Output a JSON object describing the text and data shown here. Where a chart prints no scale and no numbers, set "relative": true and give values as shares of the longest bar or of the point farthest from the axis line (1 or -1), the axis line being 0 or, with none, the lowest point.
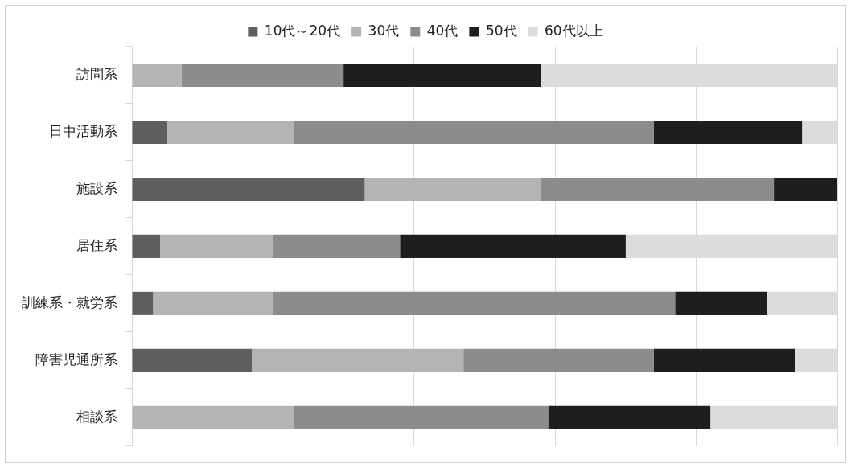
{
  "chart_data": {
    "type": "bar",
    "orientation": "horizontal",
    "stacked": true,
    "relative": true,
    "grid": "x",
    "legend": "top",
    "categories": [
      "訪問系",
      "日中活動系",
      "施設系",
      "居住系",
      "訓練系・就労系",
      "障害児通所系",
      "相談系"
    ],
    "series": [
      {
        "name": "10代～20代",
        "color": "#5f5f5f",
        "values": [
          0,
          0.05,
          0.33,
          0.04,
          0.03,
          0.17,
          0
        ]
      },
      {
        "name": "30代",
        "color": "#b4b4b4",
        "values": [
          0.07,
          0.18,
          0.25,
          0.16,
          0.17,
          0.3,
          0.23
        ]
      },
      {
        "name": "40代",
        "color": "#8c8c8c",
        "values": [
          0.23,
          0.51,
          0.33,
          0.18,
          0.57,
          0.27,
          0.36
        ]
      },
      {
        "name": "50代",
        "color": "#1e1e1e",
        "values": [
          0.28,
          0.21,
          0.09,
          0.32,
          0.13,
          0.2,
          0.23
        ]
      },
      {
        "name": "60代以上",
        "color": "#dcdcdc",
        "values": [
          0.42,
          0.05,
          0,
          0.3,
          0.1,
          0.06,
          0.18
        ]
      }
    ]
  }
}
